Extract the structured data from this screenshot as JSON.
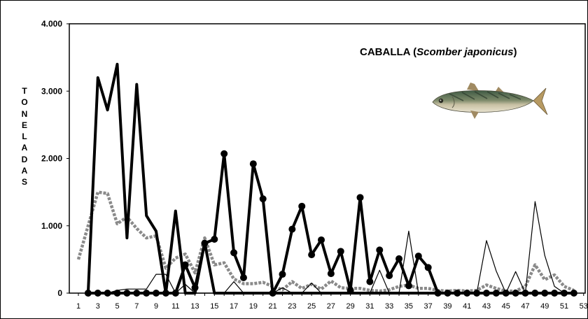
{
  "chart_data": {
    "type": "line",
    "title": {
      "prefix": "CABALLA (",
      "species": "Scomber japonicus",
      "suffix": ")"
    },
    "ylabel_letters": [
      "T",
      "O",
      "N",
      "E",
      "L",
      "A",
      "D",
      "A",
      "S"
    ],
    "x": [
      1,
      2,
      3,
      4,
      5,
      6,
      7,
      8,
      9,
      10,
      11,
      12,
      13,
      14,
      15,
      16,
      17,
      18,
      19,
      20,
      21,
      22,
      23,
      24,
      25,
      26,
      27,
      28,
      29,
      30,
      31,
      32,
      33,
      34,
      35,
      36,
      37,
      38,
      39,
      40,
      41,
      42,
      43,
      44,
      45,
      46,
      47,
      48,
      49,
      50,
      51,
      52,
      53
    ],
    "xticks": [
      1,
      3,
      5,
      7,
      9,
      11,
      13,
      15,
      17,
      19,
      21,
      23,
      25,
      27,
      29,
      31,
      33,
      35,
      37,
      39,
      41,
      43,
      45,
      47,
      49,
      51,
      53
    ],
    "ylim": [
      0,
      4000
    ],
    "yticks": [
      {
        "value": 0,
        "label": "0"
      },
      {
        "value": 1000,
        "label": "1.000"
      },
      {
        "value": 2000,
        "label": "2.000"
      },
      {
        "value": 3000,
        "label": "3.000"
      },
      {
        "value": 4000,
        "label": "4.000"
      }
    ],
    "grid": false,
    "series": [
      {
        "style": "thick",
        "color": "#000000",
        "values": [
          null,
          0,
          3200,
          2720,
          3400,
          820,
          3100,
          1150,
          920,
          0,
          1220,
          0,
          0,
          750,
          0,
          0,
          0,
          0,
          0,
          0,
          0,
          0,
          0,
          0,
          0,
          0,
          0,
          0,
          0,
          0,
          0,
          0,
          0,
          0,
          0,
          0,
          0,
          0,
          0,
          0,
          0,
          0,
          0,
          0,
          0,
          0,
          0,
          0,
          0,
          0,
          0,
          0,
          null
        ]
      },
      {
        "style": "thick-markers",
        "color": "#000000",
        "values": [
          null,
          0,
          0,
          0,
          0,
          0,
          0,
          0,
          0,
          0,
          0,
          420,
          80,
          740,
          800,
          2070,
          600,
          230,
          1920,
          1400,
          0,
          280,
          950,
          1290,
          570,
          790,
          290,
          620,
          40,
          1420,
          170,
          640,
          260,
          510,
          110,
          550,
          380,
          0,
          0,
          0,
          0,
          0,
          0,
          0,
          0,
          0,
          0,
          0,
          0,
          0,
          0,
          0,
          null
        ]
      },
      {
        "style": "thin",
        "color": "#000000",
        "values": [
          null,
          0,
          0,
          0,
          40,
          60,
          60,
          60,
          280,
          280,
          0,
          130,
          0,
          0,
          0,
          0,
          170,
          0,
          0,
          0,
          0,
          80,
          0,
          0,
          150,
          0,
          0,
          0,
          0,
          0,
          0,
          340,
          0,
          0,
          920,
          0,
          0,
          0,
          0,
          0,
          0,
          0,
          780,
          330,
          0,
          320,
          0,
          1360,
          560,
          100,
          0,
          0,
          null
        ]
      },
      {
        "style": "gray-dotted",
        "color": "#8a8a8a",
        "values": [
          500,
          1000,
          1500,
          1480,
          1030,
          1130,
          960,
          820,
          850,
          370,
          520,
          580,
          300,
          820,
          420,
          450,
          210,
          140,
          140,
          160,
          100,
          50,
          170,
          70,
          130,
          60,
          180,
          80,
          70,
          70,
          40,
          30,
          50,
          100,
          120,
          70,
          70,
          40,
          30,
          40,
          30,
          40,
          120,
          70,
          30,
          30,
          100,
          420,
          200,
          270,
          100,
          40,
          null
        ]
      }
    ]
  }
}
